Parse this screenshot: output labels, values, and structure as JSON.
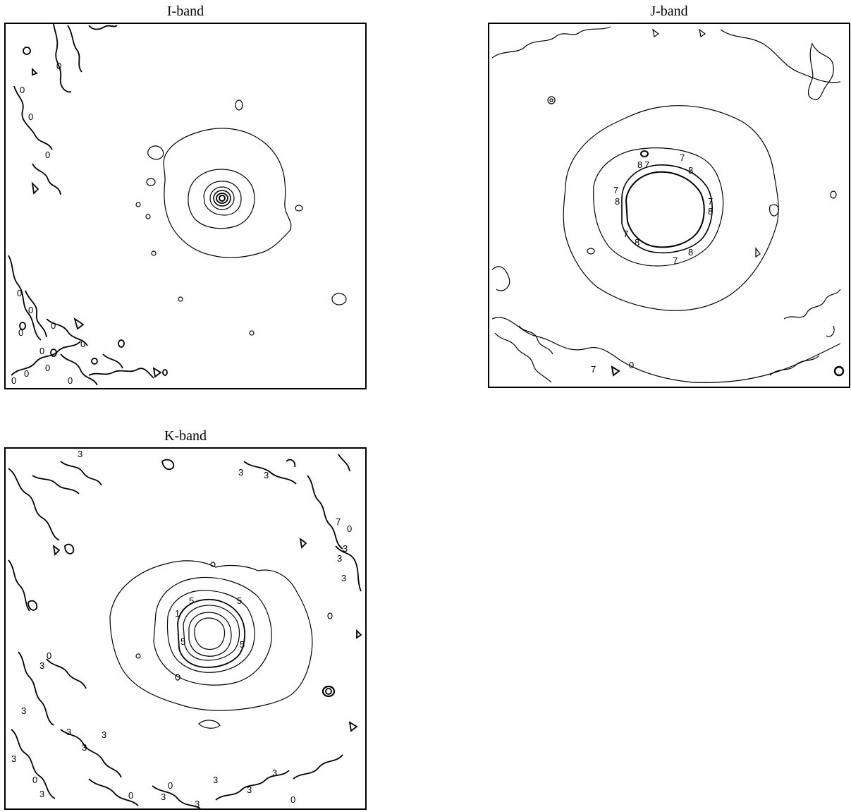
{
  "panels": [
    {
      "id": "i",
      "title": "I-band",
      "labels": [
        "0",
        "0",
        "0",
        "0",
        "0",
        "0",
        "0",
        "0",
        "0",
        "0",
        "0",
        "0",
        "0",
        "0"
      ]
    },
    {
      "id": "j",
      "title": "J-band",
      "labels": [
        "7",
        "8",
        "7",
        "8",
        "7",
        "8",
        "8",
        "7",
        "8",
        "7",
        "8",
        "7",
        "0",
        "7"
      ]
    },
    {
      "id": "k",
      "title": "K-band",
      "labels": [
        "3",
        "3",
        "3",
        "3",
        "3",
        "0",
        "3",
        "3",
        "5",
        "5",
        "5",
        "5",
        "1",
        "3",
        "3",
        "0",
        "3",
        "3",
        "3",
        "3",
        "0",
        "3",
        "0",
        "3",
        "0",
        "3",
        "3",
        "0",
        "3",
        "7"
      ]
    }
  ],
  "style": {
    "stroke": "#000000",
    "background": "#ffffff"
  }
}
